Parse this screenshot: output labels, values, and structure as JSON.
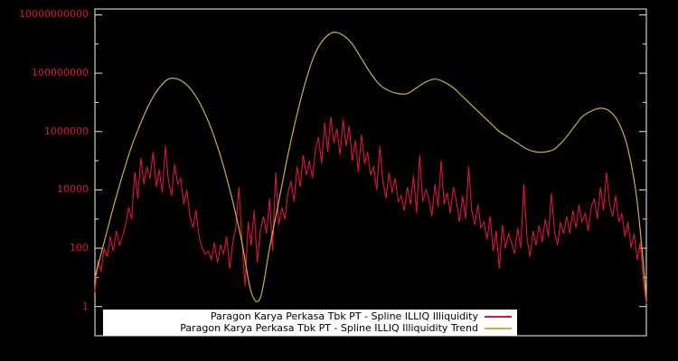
{
  "chart": {
    "background": "#000000",
    "plot_border_color": "#f2f2f2",
    "tick_color": "#e6e6e6",
    "tick_label_color": "#dc143c",
    "legend": {
      "background": "#ffffff",
      "position": "bottom-center-inside",
      "entries": [
        {
          "label": "Paragon Karya Perkasa Tbk PT - Spline ILLIQ Illiquidity",
          "color": "#dc143c"
        },
        {
          "label": "Paragon Karya Perkasa Tbk PT - Spline ILLIQ Illiquidity Trend",
          "color": "#c8b23c"
        }
      ]
    }
  },
  "chart_data": {
    "type": "line",
    "title": "",
    "xlabel": "",
    "ylabel": "",
    "x_tick_labels_visible": false,
    "grid": false,
    "y_scale": "log10",
    "ylim_log10": [
      -1,
      10.2
    ],
    "yticks": [
      {
        "label": "10000000000",
        "log10": 10
      },
      {
        "label": "100000000",
        "log10": 8
      },
      {
        "label": "1000000",
        "log10": 6
      },
      {
        "label": "10000",
        "log10": 4
      },
      {
        "label": "100",
        "log10": 2
      },
      {
        "label": "1",
        "log10": 0
      }
    ],
    "series": [
      {
        "name": "Paragon Karya Perkasa Tbk PT - Spline ILLIQ Illiquidity",
        "color": "#dc143c",
        "smooth": false,
        "width": 1.1,
        "x_range": [
          0,
          1
        ],
        "log10_values": [
          0.5,
          1.6,
          1.2,
          2.0,
          1.7,
          2.4,
          1.9,
          2.6,
          2.1,
          2.4,
          2.8,
          3.4,
          3.0,
          4.6,
          3.7,
          5.1,
          4.2,
          4.8,
          4.4,
          5.3,
          4.1,
          4.7,
          3.9,
          5.5,
          4.3,
          3.8,
          4.9,
          4.2,
          4.4,
          3.5,
          4.0,
          3.1,
          2.7,
          3.3,
          2.4,
          2.0,
          1.8,
          1.9,
          1.6,
          2.2,
          1.5,
          2.1,
          1.8,
          2.4,
          1.3,
          2.2,
          2.7,
          4.1,
          2.2,
          0.7,
          2.9,
          2.1,
          3.3,
          1.5,
          2.6,
          3.1,
          2.5,
          3.7,
          1.9,
          4.6,
          2.8,
          3.4,
          3.0,
          3.9,
          4.3,
          3.6,
          4.8,
          4.1,
          5.2,
          4.5,
          5.0,
          4.4,
          5.4,
          5.8,
          4.9,
          6.3,
          5.3,
          6.5,
          5.6,
          6.1,
          5.2,
          6.4,
          5.5,
          6.2,
          5.0,
          5.7,
          4.6,
          5.9,
          4.9,
          5.3,
          4.5,
          4.8,
          4.0,
          5.5,
          4.3,
          3.7,
          4.6,
          3.9,
          4.4,
          3.6,
          3.8,
          3.3,
          4.1,
          3.5,
          4.5,
          3.2,
          5.2,
          3.6,
          4.0,
          3.7,
          3.1,
          4.2,
          3.4,
          5.0,
          3.5,
          3.9,
          3.2,
          4.1,
          3.6,
          2.9,
          3.8,
          3.0,
          4.8,
          3.3,
          2.8,
          3.5,
          2.7,
          2.9,
          2.3,
          3.1,
          1.9,
          2.6,
          1.3,
          2.8,
          2.0,
          2.5,
          2.2,
          1.8,
          2.7,
          2.0,
          4.2,
          2.4,
          1.7,
          2.6,
          2.1,
          2.8,
          2.2,
          3.0,
          2.4,
          3.9,
          2.6,
          2.1,
          2.9,
          2.5,
          3.1,
          2.5,
          3.3,
          2.7,
          3.5,
          2.9,
          3.2,
          2.6,
          3.4,
          3.7,
          3.0,
          4.1,
          3.3,
          4.6,
          3.5,
          3.1,
          3.8,
          2.9,
          3.2,
          2.4,
          2.9,
          2.0,
          2.5,
          1.6,
          2.2,
          0.9,
          0.1
        ]
      },
      {
        "name": "Paragon Karya Perkasa Tbk PT - Spline ILLIQ Illiquidity Trend",
        "color": "#c8b23c",
        "smooth": true,
        "width": 1.2,
        "x_range": [
          0,
          1
        ],
        "log10_values": [
          1.0,
          2.2,
          3.4,
          4.5,
          5.5,
          6.3,
          7.0,
          7.5,
          7.8,
          7.8,
          7.6,
          7.2,
          6.6,
          5.8,
          4.8,
          3.6,
          2.2,
          0.5,
          0.3,
          2.0,
          3.6,
          5.2,
          6.6,
          7.8,
          8.7,
          9.2,
          9.4,
          9.3,
          9.0,
          8.5,
          8.0,
          7.6,
          7.4,
          7.3,
          7.3,
          7.5,
          7.7,
          7.8,
          7.7,
          7.5,
          7.2,
          6.9,
          6.6,
          6.3,
          6.0,
          5.8,
          5.6,
          5.4,
          5.3,
          5.3,
          5.4,
          5.7,
          6.1,
          6.5,
          6.7,
          6.8,
          6.7,
          6.3,
          5.4,
          3.6,
          0.3
        ]
      }
    ]
  }
}
